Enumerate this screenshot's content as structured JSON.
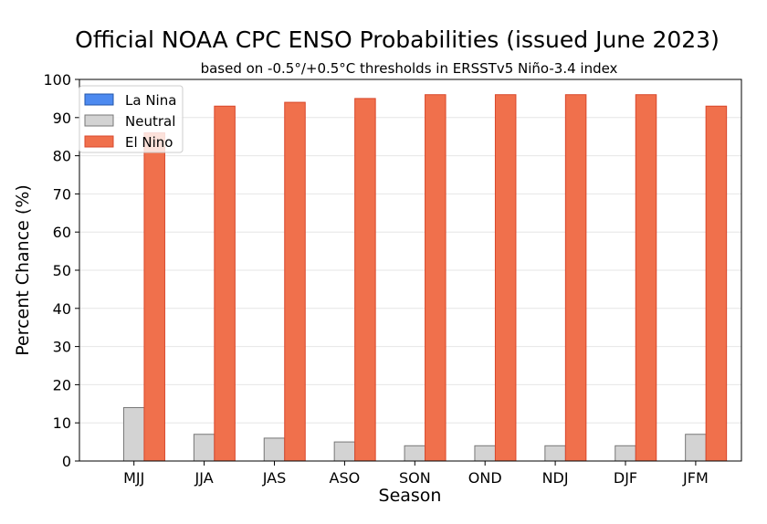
{
  "chart_data": {
    "type": "bar",
    "title": "Official NOAA CPC ENSO Probabilities (issued June 2023)",
    "subtitle": "based on -0.5°/+0.5°C thresholds in ERSSTv5 Niño-3.4 index",
    "xlabel": "Season",
    "ylabel": "Percent Chance (%)",
    "ylim": [
      0,
      100
    ],
    "yticks": [
      0,
      10,
      20,
      30,
      40,
      50,
      60,
      70,
      80,
      90,
      100
    ],
    "grid": true,
    "legend": "top-left",
    "categories": [
      "MJJ",
      "JJA",
      "JAS",
      "ASO",
      "SON",
      "OND",
      "NDJ",
      "DJF",
      "JFM"
    ],
    "series": [
      {
        "name": "La Nina",
        "color": "#4d8af0",
        "values": [
          0,
          0,
          0,
          0,
          0,
          0,
          0,
          0,
          0
        ]
      },
      {
        "name": "Neutral",
        "color": "#d3d3d3",
        "values": [
          14,
          7,
          6,
          5,
          4,
          4,
          4,
          4,
          7
        ]
      },
      {
        "name": "El Nino",
        "color": "#f0704c",
        "values": [
          86,
          93,
          94,
          95,
          96,
          96,
          96,
          96,
          93
        ]
      }
    ]
  }
}
